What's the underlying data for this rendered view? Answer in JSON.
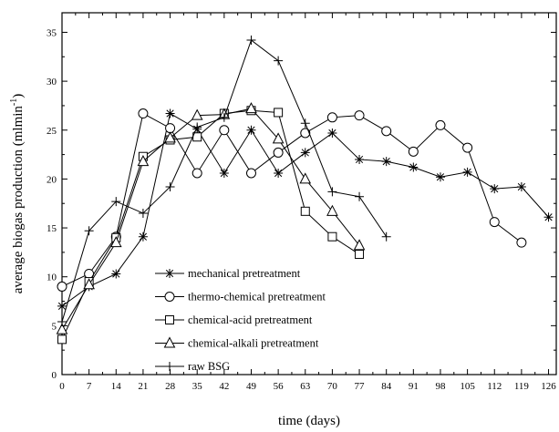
{
  "chart_data": {
    "type": "line",
    "xlabel": "time (days)",
    "ylabel": "average biogas production (mlmin",
    "ylabel_sup": "-1",
    "ylabel_close": ")",
    "xlim": [
      0,
      128
    ],
    "ylim": [
      0,
      37
    ],
    "xticks": [
      0,
      7,
      14,
      21,
      28,
      35,
      42,
      49,
      56,
      63,
      70,
      77,
      84,
      91,
      98,
      105,
      112,
      119,
      126
    ],
    "yticks": [
      0,
      5,
      10,
      15,
      20,
      25,
      30,
      35
    ],
    "legend_position": "lower-left",
    "grid": false,
    "series": [
      {
        "name": "mechanical pretreatment",
        "marker": "asterisk",
        "points": [
          [
            0,
            7.0
          ],
          [
            7,
            9.0
          ],
          [
            14,
            10.3
          ],
          [
            21,
            14.1
          ],
          [
            28,
            26.7
          ],
          [
            35,
            25.1
          ],
          [
            42,
            20.6
          ],
          [
            49,
            25.0
          ],
          [
            56,
            20.6
          ],
          [
            63,
            22.7
          ],
          [
            70,
            24.7
          ],
          [
            77,
            22.0
          ],
          [
            84,
            21.8
          ],
          [
            91,
            21.2
          ],
          [
            98,
            20.2
          ],
          [
            105,
            20.7
          ],
          [
            112,
            19.0
          ],
          [
            119,
            19.2
          ],
          [
            126,
            16.1
          ]
        ]
      },
      {
        "name": "thermo-chemical pretreatment",
        "marker": "circle",
        "points": [
          [
            0,
            9.0
          ],
          [
            7,
            10.3
          ],
          [
            14,
            14.1
          ],
          [
            21,
            26.7
          ],
          [
            28,
            25.2
          ],
          [
            35,
            20.6
          ],
          [
            42,
            25.0
          ],
          [
            49,
            20.6
          ],
          [
            56,
            22.7
          ],
          [
            63,
            24.7
          ],
          [
            70,
            26.3
          ],
          [
            77,
            26.5
          ],
          [
            84,
            24.9
          ],
          [
            91,
            22.8
          ],
          [
            98,
            25.5
          ],
          [
            105,
            23.2
          ],
          [
            112,
            15.6
          ],
          [
            119,
            13.5
          ]
        ]
      },
      {
        "name": "chemical-acid pretreatment",
        "marker": "square",
        "points": [
          [
            0,
            3.6
          ],
          [
            7,
            9.5
          ],
          [
            14,
            14.0
          ],
          [
            21,
            22.3
          ],
          [
            28,
            24.0
          ],
          [
            35,
            24.3
          ],
          [
            42,
            26.7
          ],
          [
            49,
            27.0
          ],
          [
            56,
            26.8
          ],
          [
            63,
            16.7
          ],
          [
            70,
            14.1
          ],
          [
            77,
            12.3
          ]
        ]
      },
      {
        "name": "chemical-alkali pretreatment",
        "marker": "triangle",
        "points": [
          [
            0,
            4.6
          ],
          [
            7,
            9.2
          ],
          [
            14,
            13.5
          ],
          [
            21,
            21.8
          ],
          [
            28,
            24.2
          ],
          [
            35,
            26.5
          ],
          [
            42,
            26.6
          ],
          [
            49,
            27.2
          ],
          [
            56,
            24.1
          ],
          [
            63,
            20.0
          ],
          [
            70,
            16.7
          ],
          [
            77,
            13.2
          ]
        ]
      },
      {
        "name": "raw BSG",
        "marker": "plus",
        "points": [
          [
            0,
            5.4
          ],
          [
            7,
            14.7
          ],
          [
            14,
            17.7
          ],
          [
            21,
            16.5
          ],
          [
            28,
            19.2
          ],
          [
            35,
            25.3
          ],
          [
            42,
            26.3
          ],
          [
            49,
            34.2
          ],
          [
            56,
            32.1
          ],
          [
            63,
            25.7
          ],
          [
            70,
            18.7
          ],
          [
            77,
            18.2
          ],
          [
            84,
            14.1
          ]
        ]
      }
    ]
  }
}
